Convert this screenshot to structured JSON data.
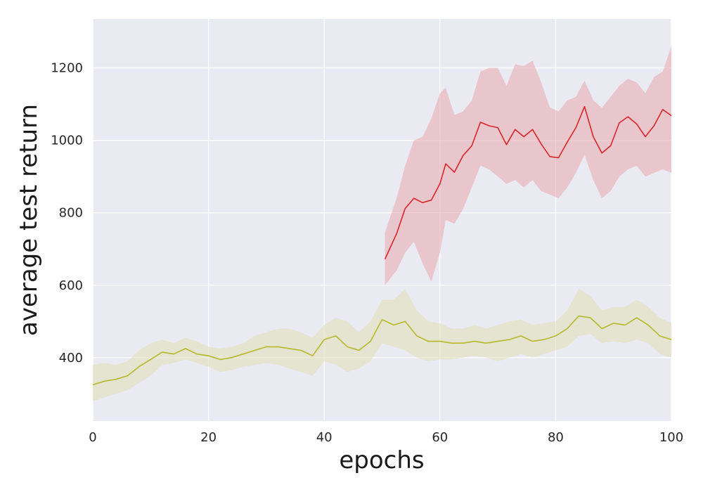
{
  "chart_data": {
    "type": "line",
    "title": "",
    "xlabel": "epochs",
    "ylabel": "average test return",
    "xlim": [
      0,
      100
    ],
    "ylim": [
      225,
      1335
    ],
    "xticks": [
      0,
      20,
      40,
      60,
      80,
      100
    ],
    "yticks": [
      400,
      600,
      800,
      1000,
      1200
    ],
    "grid": true,
    "legend": "none",
    "colors": {
      "background": "#eaeaf2",
      "grid": "#ffffff"
    },
    "series": [
      {
        "color": "#d62728",
        "band_color": "#e8a5ad",
        "x": [
          50.5,
          52.5,
          54,
          55.5,
          57,
          58.5,
          60,
          61,
          62.5,
          64,
          65.5,
          67,
          68.5,
          70,
          71.5,
          73,
          74.5,
          76,
          77.5,
          79,
          80.5,
          82,
          83.5,
          85,
          86.5,
          88,
          89.5,
          91,
          92.5,
          94,
          95.5,
          97,
          98.5,
          100
        ],
        "y": [
          672,
          742,
          812,
          840,
          828,
          835,
          880,
          935,
          912,
          958,
          985,
          1050,
          1040,
          1035,
          988,
          1030,
          1010,
          1030,
          990,
          955,
          952,
          995,
          1035,
          1093,
          1010,
          965,
          985,
          1048,
          1065,
          1045,
          1010,
          1040,
          1085,
          1068
        ],
        "lower": [
          600,
          640,
          690,
          720,
          660,
          610,
          690,
          780,
          770,
          810,
          870,
          930,
          920,
          900,
          880,
          890,
          870,
          890,
          860,
          850,
          840,
          870,
          910,
          960,
          890,
          840,
          860,
          900,
          920,
          930,
          900,
          910,
          920,
          910
        ],
        "upper": [
          745,
          840,
          930,
          1000,
          1010,
          1060,
          1130,
          1145,
          1070,
          1080,
          1110,
          1190,
          1200,
          1200,
          1150,
          1210,
          1205,
          1220,
          1160,
          1090,
          1080,
          1110,
          1120,
          1165,
          1110,
          1090,
          1120,
          1150,
          1170,
          1160,
          1130,
          1175,
          1190,
          1260
        ]
      },
      {
        "color": "#b7b82a",
        "band_color": "#dfdfb4",
        "x": [
          0,
          2,
          4,
          6,
          8,
          10,
          12,
          14,
          16,
          18,
          20,
          22,
          24,
          26,
          28,
          30,
          32,
          34,
          36,
          38,
          40,
          42,
          44,
          46,
          48,
          50,
          52,
          54,
          56,
          58,
          60,
          62,
          64,
          66,
          68,
          70,
          72,
          74,
          76,
          78,
          80,
          82,
          84,
          86,
          88,
          90,
          92,
          94,
          96,
          98,
          100
        ],
        "y": [
          325,
          335,
          340,
          350,
          375,
          395,
          415,
          410,
          425,
          410,
          405,
          395,
          400,
          410,
          420,
          430,
          430,
          425,
          420,
          405,
          450,
          460,
          430,
          420,
          445,
          505,
          490,
          500,
          460,
          445,
          445,
          440,
          440,
          445,
          440,
          445,
          450,
          460,
          445,
          450,
          460,
          480,
          515,
          510,
          480,
          495,
          490,
          510,
          490,
          460,
          450
        ],
        "lower": [
          280,
          290,
          300,
          310,
          330,
          350,
          380,
          385,
          395,
          385,
          375,
          360,
          365,
          375,
          380,
          385,
          380,
          370,
          360,
          350,
          390,
          380,
          360,
          370,
          390,
          440,
          430,
          420,
          400,
          390,
          395,
          395,
          400,
          405,
          400,
          390,
          400,
          410,
          400,
          410,
          420,
          430,
          460,
          465,
          440,
          445,
          440,
          450,
          440,
          410,
          400
        ],
        "upper": [
          380,
          385,
          380,
          390,
          420,
          440,
          450,
          440,
          455,
          445,
          430,
          425,
          430,
          440,
          460,
          470,
          480,
          480,
          470,
          455,
          490,
          510,
          500,
          470,
          500,
          560,
          560,
          590,
          530,
          500,
          495,
          480,
          480,
          490,
          480,
          490,
          500,
          505,
          490,
          495,
          500,
          530,
          590,
          570,
          530,
          540,
          540,
          560,
          540,
          510,
          495
        ]
      }
    ]
  }
}
